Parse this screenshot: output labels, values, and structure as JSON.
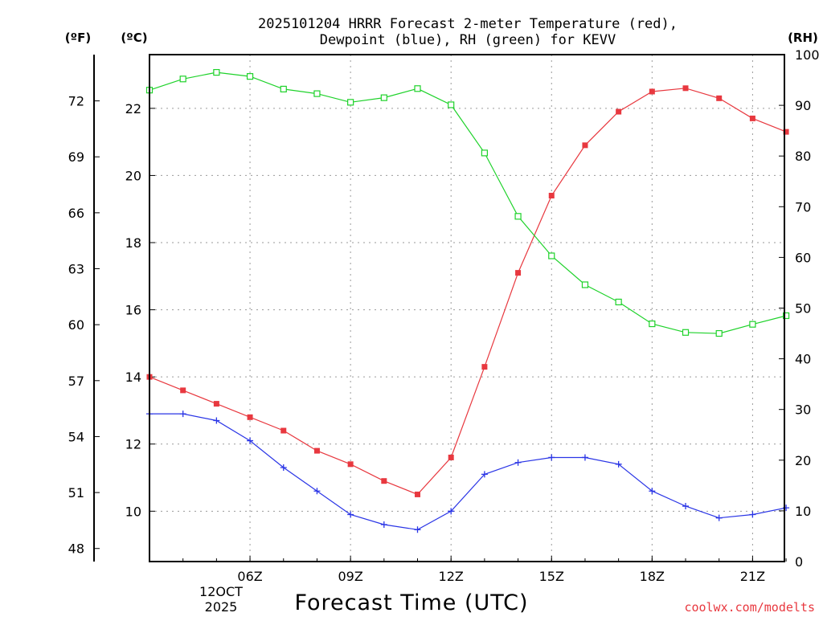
{
  "chart_data": {
    "type": "line",
    "title_lines": [
      "2025101204 HRRR Forecast 2-meter Temperature (red),",
      "Dewpoint (blue), RH (green) for KEVV"
    ],
    "xlabel": "Forecast Time (UTC)",
    "credit": "coolwx.com/modelts",
    "x_hours": [
      3,
      4,
      5,
      6,
      7,
      8,
      9,
      10,
      11,
      12,
      13,
      14,
      15,
      16,
      17,
      18,
      19,
      20,
      21,
      22
    ],
    "xlim": [
      3,
      21.95
    ],
    "x_ticks": [
      {
        "hour": 6,
        "label": "06Z"
      },
      {
        "hour": 9,
        "label": "09Z"
      },
      {
        "hour": 12,
        "label": "12Z"
      },
      {
        "hour": 15,
        "label": "15Z"
      },
      {
        "hour": 18,
        "label": "18Z"
      },
      {
        "hour": 21,
        "label": "21Z"
      }
    ],
    "date_labels": [
      "12OCT",
      "2025"
    ],
    "left_axis_c": {
      "unit_label": "(ºC)",
      "ylim": [
        8.5,
        23.6
      ],
      "ticks": [
        10,
        12,
        14,
        16,
        18,
        20,
        22
      ]
    },
    "left_axis_f": {
      "unit_label": "(ºF)",
      "ticks": [
        48,
        51,
        54,
        57,
        60,
        63,
        66,
        69,
        72
      ]
    },
    "right_axis_rh": {
      "unit_label": "(RH)",
      "ylim": [
        0,
        100
      ],
      "ticks": [
        0,
        10,
        20,
        30,
        40,
        50,
        60,
        70,
        80,
        90,
        100
      ]
    },
    "series": [
      {
        "name": "Temperature",
        "axis": "c",
        "color": "#e8383f",
        "marker": "filled-square",
        "values": [
          14.0,
          13.6,
          13.2,
          12.8,
          12.4,
          11.8,
          11.4,
          10.9,
          10.5,
          11.6,
          14.3,
          17.1,
          19.4,
          20.9,
          21.9,
          22.5,
          22.6,
          22.3,
          21.7,
          21.3
        ]
      },
      {
        "name": "Dewpoint",
        "axis": "c",
        "color": "#2a35e6",
        "marker": "plus",
        "values": [
          12.9,
          12.9,
          12.7,
          12.1,
          11.3,
          10.6,
          9.9,
          9.6,
          9.45,
          10.0,
          11.1,
          11.45,
          11.6,
          11.6,
          11.4,
          10.6,
          10.15,
          9.8,
          9.9,
          10.1
        ]
      },
      {
        "name": "RH",
        "axis": "rh",
        "color": "#1ed22a",
        "marker": "open-square",
        "values": [
          93,
          95.2,
          96.5,
          95.7,
          93.2,
          92.3,
          90.6,
          91.5,
          93.3,
          90.1,
          80.6,
          68.1,
          60.3,
          54.6,
          51.2,
          46.9,
          45.2,
          45.0,
          46.8,
          48.5
        ]
      }
    ]
  }
}
